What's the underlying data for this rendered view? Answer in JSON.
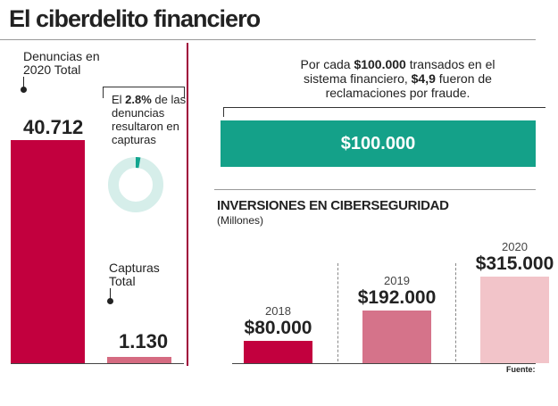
{
  "header": {
    "title": "El ciberdelito financiero",
    "source": "Fuente:"
  },
  "chart_data": [
    {
      "type": "bar",
      "categories": [
        "Denuncias en 2020 Total",
        "Capturas Total"
      ],
      "values": [
        40712,
        1130
      ],
      "value_labels": [
        "40.712",
        "1.130"
      ],
      "colors": [
        "#c2003e",
        "#d56b81"
      ]
    },
    {
      "type": "pie",
      "annotation": [
        "El ",
        " de las denuncias resultaron en capturas"
      ],
      "values": [
        2.8
      ],
      "value_labels": [
        "2.8%"
      ],
      "color": "#12a58f",
      "track_color": "#d6eeea"
    },
    {
      "type": "hbar",
      "note": [
        {
          "text": "Por cada "
        },
        {
          "text": "$100.000",
          "bold": true
        },
        {
          "text": " transados en el sistema financiero, "
        },
        {
          "text": "$4,9",
          "bold": true
        },
        {
          "text": " fueron de reclamaciones por fraude."
        }
      ],
      "values": [
        100000
      ],
      "value_labels": [
        "$100.000"
      ],
      "color": "#14a189"
    },
    {
      "type": "bar",
      "title": "INVERSIONES EN CIBERSEGURIDAD",
      "subtitle": "(Millones)",
      "categories": [
        "2018",
        "2019",
        "2020"
      ],
      "values": [
        80000,
        192000,
        315000
      ],
      "value_labels": [
        "$80.000",
        "$192.000",
        "$315.000"
      ],
      "colors": [
        "#c2003e",
        "#d5738a",
        "#f2c4c9"
      ]
    }
  ]
}
